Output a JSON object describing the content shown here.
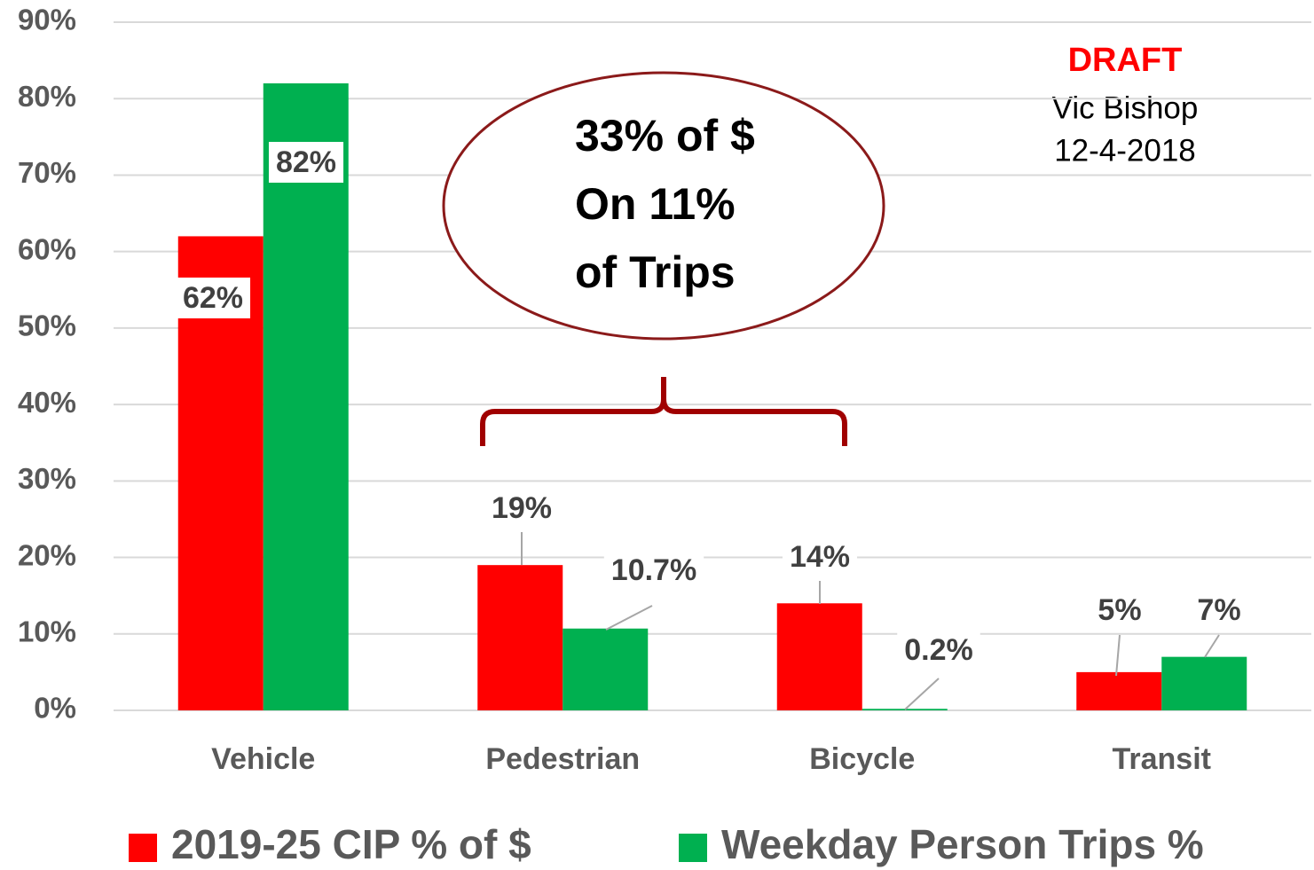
{
  "chart_data": {
    "type": "bar",
    "categories": [
      "Vehicle",
      "Pedestrian",
      "Bicycle",
      "Transit"
    ],
    "series": [
      {
        "name": "2019-25 CIP % of $",
        "color": "#ff0000",
        "values": [
          62,
          19,
          14,
          5
        ],
        "value_labels": [
          "62%",
          "19%",
          "14%",
          "5%"
        ]
      },
      {
        "name": "Weekday Person Trips %",
        "color": "#00b050",
        "values": [
          82,
          10.7,
          0.2,
          7
        ],
        "value_labels": [
          "82%",
          "10.7%",
          "0.2%",
          "7%"
        ]
      }
    ],
    "ylim": [
      0,
      90
    ],
    "yticks": [
      {
        "value": 0,
        "label": "0%"
      },
      {
        "value": 10,
        "label": "10%"
      },
      {
        "value": 20,
        "label": "20%"
      },
      {
        "value": 30,
        "label": "30%"
      },
      {
        "value": 40,
        "label": "40%"
      },
      {
        "value": 50,
        "label": "50%"
      },
      {
        "value": 60,
        "label": "60%"
      },
      {
        "value": 70,
        "label": "70%"
      },
      {
        "value": 80,
        "label": "80%"
      },
      {
        "value": 90,
        "label": "90%"
      }
    ],
    "grid": true,
    "legend": "bottom",
    "annotations": {
      "draft": "DRAFT",
      "author": "Vic Bishop",
      "date": "12-4-2018",
      "callout": [
        "33% of $",
        "On 11%",
        "of Trips"
      ]
    }
  }
}
